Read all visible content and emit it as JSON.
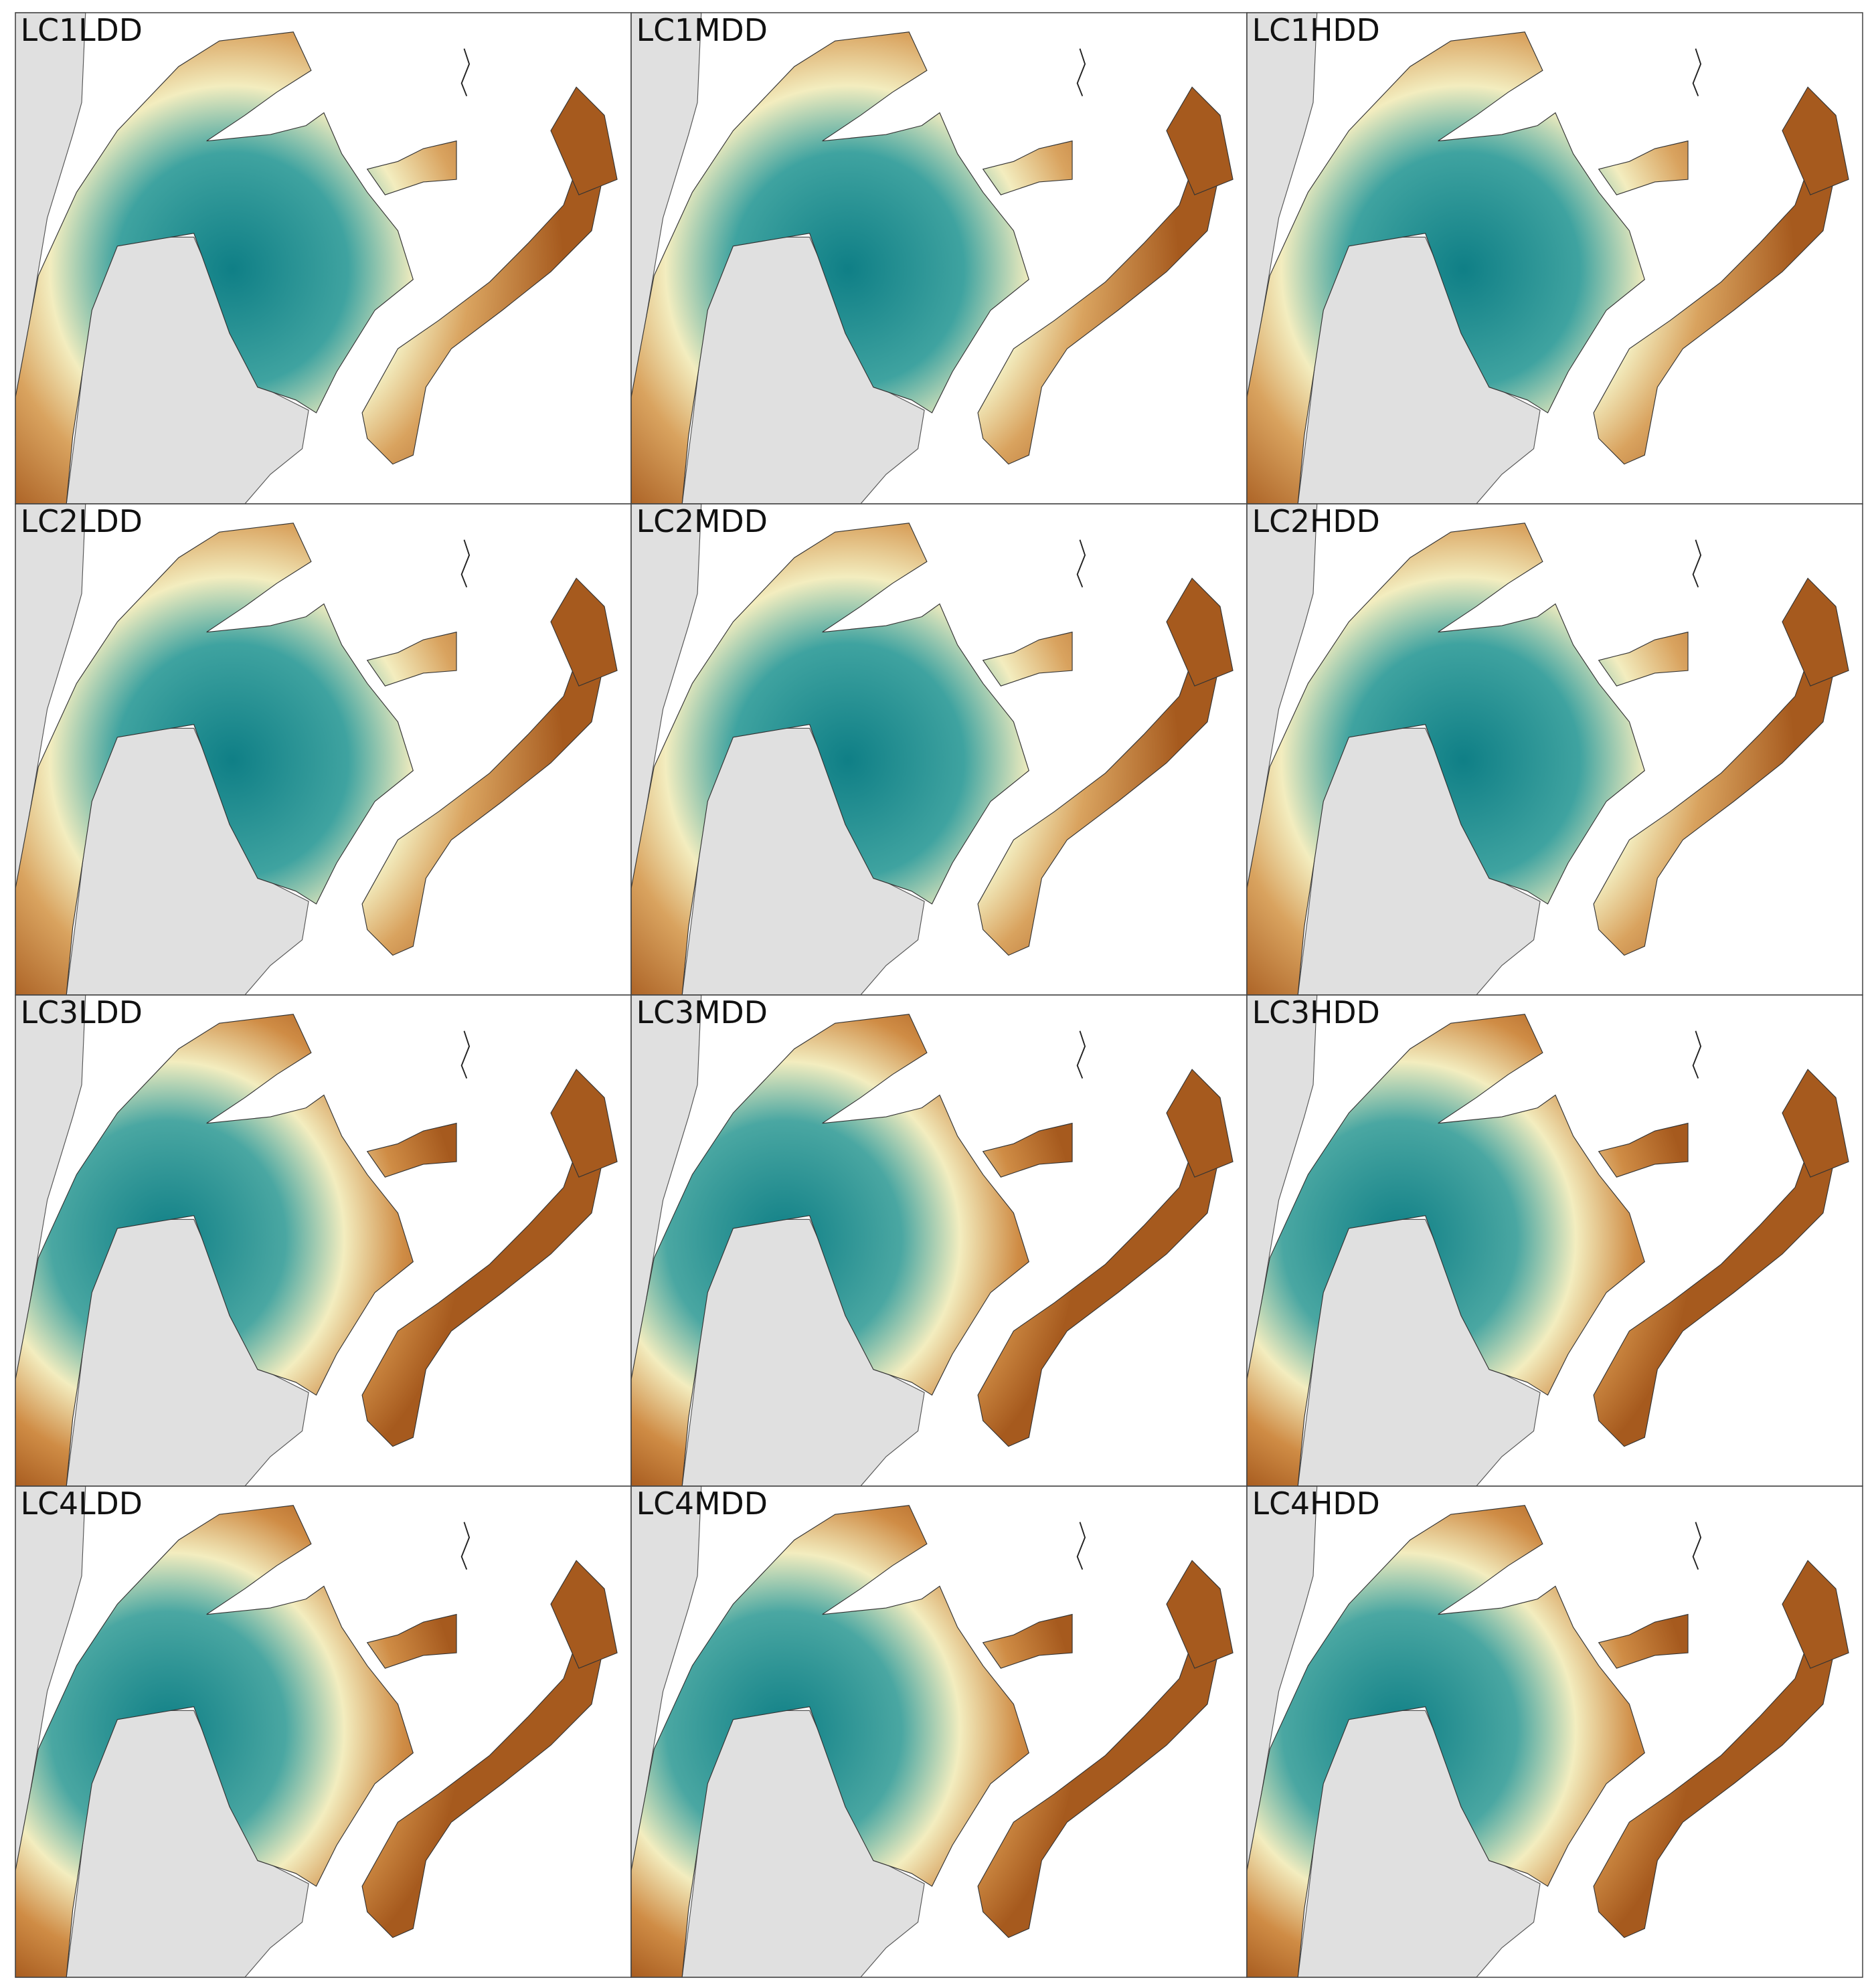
{
  "panels": [
    {
      "label": "LC1LDD"
    },
    {
      "label": "LC1MDD"
    },
    {
      "label": "LC1HDD"
    },
    {
      "label": "LC2LDD"
    },
    {
      "label": "LC2MDD"
    },
    {
      "label": "LC2HDD"
    },
    {
      "label": "LC3LDD"
    },
    {
      "label": "LC3MDD"
    },
    {
      "label": "LC3HDD"
    },
    {
      "label": "LC4LDD"
    },
    {
      "label": "LC4MDD"
    },
    {
      "label": "LC4HDD"
    }
  ]
}
